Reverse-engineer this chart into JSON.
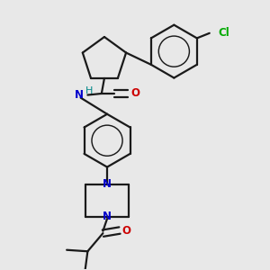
{
  "background_color": "#e8e8e8",
  "bond_color": "#1a1a1a",
  "N_color": "#0000cc",
  "O_color": "#cc0000",
  "Cl_color": "#00aa00",
  "H_color": "#008888",
  "line_width": 1.6,
  "figsize": [
    3.0,
    3.0
  ],
  "dpi": 100,
  "xlim": [
    0.05,
    0.95
  ],
  "ylim": [
    0.02,
    0.98
  ]
}
